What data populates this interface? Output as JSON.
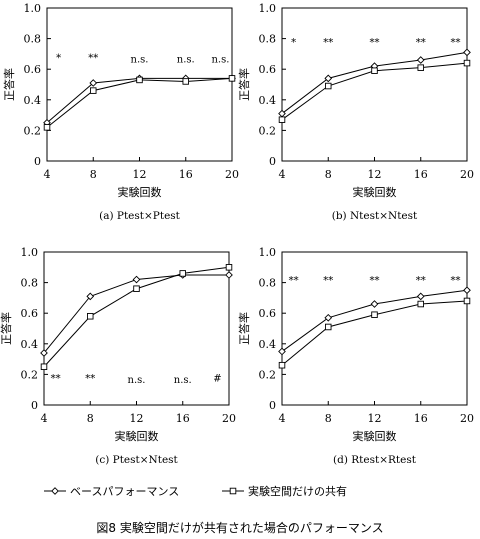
{
  "caption": "図8 実験空間だけが共有された場合のパフォーマンス",
  "legend": [
    {
      "label": "ベースパフォーマンス",
      "marker": "diamond"
    },
    {
      "label": "実験空間だけの共有",
      "marker": "square"
    }
  ],
  "chart_data": [
    {
      "type": "line",
      "subtitle": "(a) Ptest×Ptest",
      "xlabel": "実験回数",
      "ylabel": "正答率",
      "x": [
        4,
        8,
        12,
        16,
        20
      ],
      "xlim": [
        4,
        20
      ],
      "ylim": [
        0,
        1
      ],
      "xticks": [
        "4",
        "8",
        "12",
        "16",
        "20"
      ],
      "yticks": [
        "0",
        "0.2",
        "0.4",
        "0.6",
        "0.8",
        "1.0"
      ],
      "series": [
        {
          "name": "ベースパフォーマンス",
          "values": [
            0.25,
            0.51,
            0.54,
            0.54,
            0.54
          ]
        },
        {
          "name": "実験空間だけの共有",
          "values": [
            0.22,
            0.46,
            0.53,
            0.52,
            0.54
          ]
        }
      ],
      "annotations": [
        {
          "x": 5,
          "y": 0.68,
          "text": "*"
        },
        {
          "x": 8,
          "y": 0.68,
          "text": "**"
        },
        {
          "x": 12,
          "y": 0.67,
          "text": "n.s."
        },
        {
          "x": 16,
          "y": 0.67,
          "text": "n.s."
        },
        {
          "x": 19,
          "y": 0.67,
          "text": "n.s."
        }
      ]
    },
    {
      "type": "line",
      "subtitle": "(b) Ntest×Ntest",
      "xlabel": "実験回数",
      "ylabel": "正答率",
      "x": [
        4,
        8,
        12,
        16,
        20
      ],
      "xlim": [
        4,
        20
      ],
      "ylim": [
        0,
        1
      ],
      "xticks": [
        "4",
        "8",
        "12",
        "16",
        "20"
      ],
      "yticks": [
        "0",
        "0.2",
        "0.4",
        "0.6",
        "0.8",
        "1.0"
      ],
      "series": [
        {
          "name": "ベースパフォーマンス",
          "values": [
            0.31,
            0.54,
            0.62,
            0.66,
            0.71
          ]
        },
        {
          "name": "実験空間だけの共有",
          "values": [
            0.27,
            0.49,
            0.59,
            0.61,
            0.64
          ]
        }
      ],
      "annotations": [
        {
          "x": 5,
          "y": 0.78,
          "text": "*"
        },
        {
          "x": 8,
          "y": 0.78,
          "text": "**"
        },
        {
          "x": 12,
          "y": 0.78,
          "text": "**"
        },
        {
          "x": 16,
          "y": 0.78,
          "text": "**"
        },
        {
          "x": 19,
          "y": 0.78,
          "text": "**"
        }
      ]
    },
    {
      "type": "line",
      "subtitle": "(c) Ptest×Ntest",
      "xlabel": "実験回数",
      "ylabel": "正答率",
      "x": [
        4,
        8,
        12,
        16,
        20
      ],
      "xlim": [
        4,
        20
      ],
      "ylim": [
        0,
        1
      ],
      "xticks": [
        "4",
        "8",
        "12",
        "16",
        "20"
      ],
      "yticks": [
        "0",
        "0.2",
        "0.4",
        "0.6",
        "0.8",
        "1.0"
      ],
      "series": [
        {
          "name": "ベースパフォーマンス",
          "values": [
            0.34,
            0.71,
            0.82,
            0.85,
            0.85
          ]
        },
        {
          "name": "実験空間だけの共有",
          "values": [
            0.25,
            0.58,
            0.76,
            0.86,
            0.9
          ]
        }
      ],
      "annotations": [
        {
          "x": 5,
          "y": 0.18,
          "text": "**"
        },
        {
          "x": 8,
          "y": 0.18,
          "text": "**"
        },
        {
          "x": 12,
          "y": 0.17,
          "text": "n.s."
        },
        {
          "x": 16,
          "y": 0.17,
          "text": "n.s."
        },
        {
          "x": 19,
          "y": 0.18,
          "text": "#"
        }
      ]
    },
    {
      "type": "line",
      "subtitle": "(d) Rtest×Rtest",
      "xlabel": "実験回数",
      "ylabel": "正答率",
      "x": [
        4,
        8,
        12,
        16,
        20
      ],
      "xlim": [
        4,
        20
      ],
      "ylim": [
        0,
        1
      ],
      "xticks": [
        "4",
        "8",
        "12",
        "16",
        "20"
      ],
      "yticks": [
        "0",
        "0.2",
        "0.4",
        "0.6",
        "0.8",
        "1.0"
      ],
      "series": [
        {
          "name": "ベースパフォーマンス",
          "values": [
            0.35,
            0.57,
            0.66,
            0.71,
            0.75
          ]
        },
        {
          "name": "実験空間だけの共有",
          "values": [
            0.26,
            0.51,
            0.59,
            0.66,
            0.68
          ]
        }
      ],
      "annotations": [
        {
          "x": 5,
          "y": 0.82,
          "text": "**"
        },
        {
          "x": 8,
          "y": 0.82,
          "text": "**"
        },
        {
          "x": 12,
          "y": 0.82,
          "text": "**"
        },
        {
          "x": 16,
          "y": 0.82,
          "text": "**"
        },
        {
          "x": 19,
          "y": 0.82,
          "text": "**"
        }
      ]
    }
  ]
}
